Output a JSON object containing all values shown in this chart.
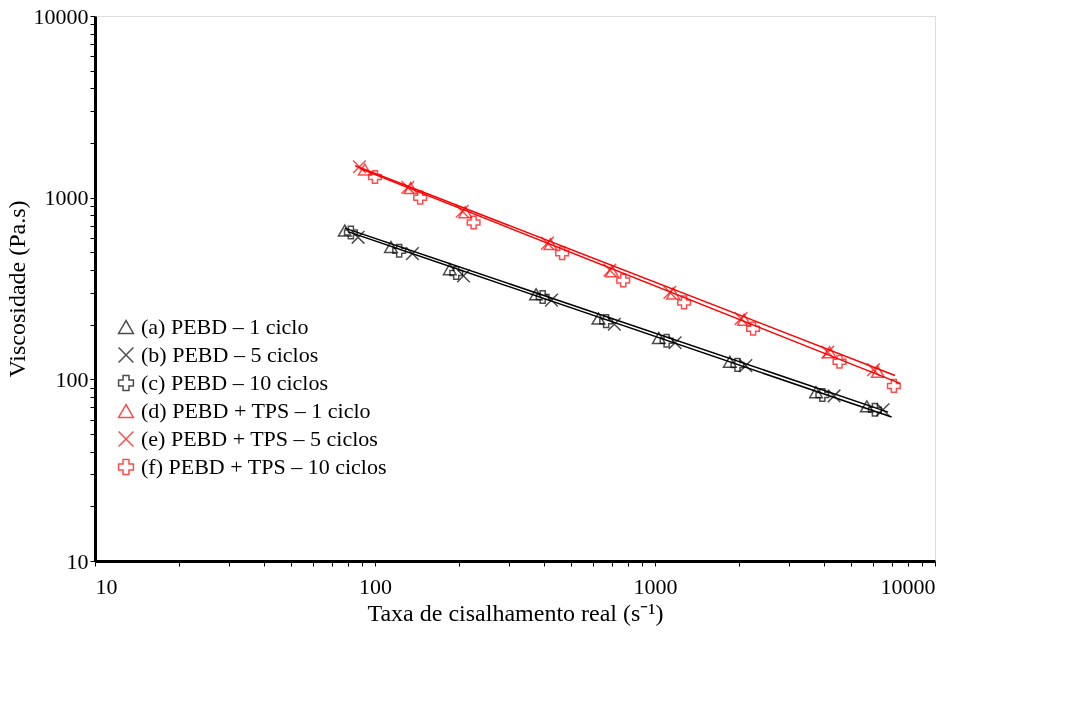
{
  "chart_data": {
    "type": "scatter",
    "xlabel": "Taxa de cisalhamento real (s⁻¹)",
    "ylabel": "Viscosidade (Pa.s)",
    "log": "xy",
    "grid": false,
    "legend": "left",
    "xlim": [
      10,
      10000
    ],
    "ylim": [
      10,
      10000
    ],
    "xticks": [
      10,
      {
        "value": 20,
        "label": null
      },
      {
        "value": 30,
        "label": null
      },
      {
        "value": 40,
        "label": null
      },
      {
        "value": 50,
        "label": null
      },
      {
        "value": 60,
        "label": null
      },
      {
        "value": 70,
        "label": null
      },
      {
        "value": 80,
        "label": null
      },
      {
        "value": 90,
        "label": null
      },
      100,
      {
        "value": 200,
        "label": null
      },
      {
        "value": 300,
        "label": null
      },
      {
        "value": 400,
        "label": null
      },
      {
        "value": 500,
        "label": null
      },
      {
        "value": 600,
        "label": null
      },
      {
        "value": 700,
        "label": null
      },
      {
        "value": 800,
        "label": null
      },
      {
        "value": 900,
        "label": null
      },
      1000,
      {
        "value": 2000,
        "label": null
      },
      {
        "value": 3000,
        "label": null
      },
      {
        "value": 4000,
        "label": null
      },
      {
        "value": 5000,
        "label": null
      },
      {
        "value": 6000,
        "label": null
      },
      {
        "value": 7000,
        "label": null
      },
      {
        "value": 8000,
        "label": null
      },
      {
        "value": 9000,
        "label": null
      },
      10000
    ],
    "yticks": [
      10,
      {
        "value": 20,
        "label": null
      },
      {
        "value": 30,
        "label": null
      },
      {
        "value": 40,
        "label": null
      },
      {
        "value": 50,
        "label": null
      },
      {
        "value": 60,
        "label": null
      },
      {
        "value": 70,
        "label": null
      },
      {
        "value": 80,
        "label": null
      },
      {
        "value": 90,
        "label": null
      },
      100,
      {
        "value": 200,
        "label": null
      },
      {
        "value": 300,
        "label": null
      },
      {
        "value": 400,
        "label": null
      },
      {
        "value": 500,
        "label": null
      },
      {
        "value": 600,
        "label": null
      },
      {
        "value": 700,
        "label": null
      },
      {
        "value": 800,
        "label": null
      },
      {
        "value": 900,
        "label": null
      },
      1000,
      {
        "value": 2000,
        "label": null
      },
      {
        "value": 3000,
        "label": null
      },
      {
        "value": 4000,
        "label": null
      },
      {
        "value": 5000,
        "label": null
      },
      {
        "value": 6000,
        "label": null
      },
      {
        "value": 7000,
        "label": null
      },
      {
        "value": 8000,
        "label": null
      },
      {
        "value": 9000,
        "label": null
      },
      10000
    ],
    "series": [
      {
        "name": "(a) PEBD – 1 ciclo",
        "color": "#000000",
        "marker": "triangle",
        "x": [
          78,
          114,
          185,
          376,
          628,
          1032,
          1850,
          3760,
          5710
        ],
        "values": [
          659,
          535,
          404,
          294,
          216,
          169,
          125,
          85,
          71
        ]
      },
      {
        "name": "(b) PEBD – 5 ciclos",
        "color": "#000000",
        "marker": "x",
        "x": [
          87,
          136,
          207,
          427,
          716,
          1180,
          2110,
          4360,
          6520
        ],
        "values": [
          605,
          492,
          371,
          273,
          201,
          159,
          119,
          81,
          68
        ]
      },
      {
        "name": "(c) PEBD – 10 ciclos",
        "color": "#000000",
        "marker": "cross",
        "x": [
          82,
          122,
          195,
          397,
          669,
          1100,
          1970,
          3960,
          6100
        ],
        "values": [
          643,
          510,
          385,
          284,
          209,
          163,
          120,
          82,
          68
        ]
      },
      {
        "name": "(d) PEBD + TPS – 1 ciclo",
        "color": "#ff0000",
        "marker": "triangle",
        "x": [
          92,
          134,
          210,
          423,
          702,
          1160,
          2080,
          4200,
          6250
        ],
        "values": [
          1427,
          1130,
          832,
          555,
          394,
          297,
          213,
          141,
          110
        ]
      },
      {
        "name": "(e) PEBD + TPS – 5 ciclos",
        "color": "#ff0000",
        "marker": "x",
        "x": [
          88,
          131,
          205,
          413,
          690,
          1130,
          2030,
          4140,
          6030
        ],
        "values": [
          1480,
          1140,
          842,
          562,
          399,
          301,
          216,
          141,
          113
        ]
      },
      {
        "name": "(f) PEBD + TPS  – 10 ciclos",
        "color": "#ff0000",
        "marker": "cross",
        "x": [
          100,
          145,
          225,
          466,
          770,
          1270,
          2240,
          4560,
          7130
        ],
        "values": [
          1300,
          1000,
          730,
          495,
          350,
          265,
          190,
          125,
          92
        ]
      },
      {
        "type": "line",
        "color": "#000000",
        "x": [
          78,
          6800
        ],
        "values": [
          680,
          66
        ]
      },
      {
        "type": "line",
        "color": "#000000",
        "x": [
          80,
          7000
        ],
        "values": [
          650,
          62
        ]
      },
      {
        "type": "line",
        "color": "#ff0000",
        "x": [
          85,
          7200
        ],
        "values": [
          1500,
          105
        ]
      },
      {
        "type": "line",
        "color": "#ff0000",
        "x": [
          88,
          7500
        ],
        "values": [
          1450,
          95
        ]
      }
    ]
  }
}
